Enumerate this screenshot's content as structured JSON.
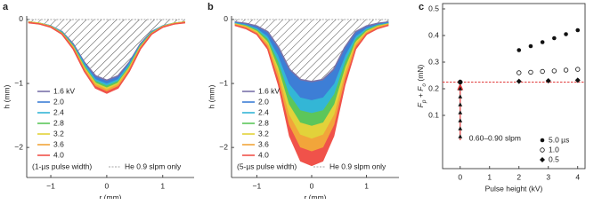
{
  "chart_data": [
    {
      "type": "area",
      "label": "a",
      "x_label": "r (mm)",
      "y_label": "h (mm)",
      "x": [
        -1.4,
        -1.2,
        -1.0,
        -0.8,
        -0.6,
        -0.4,
        -0.2,
        0,
        0.2,
        0.4,
        0.6,
        0.8,
        1.0,
        1.2,
        1.4
      ],
      "xlim": [
        -1.43,
        1.56
      ],
      "ylim": [
        -2.47,
        0.055
      ],
      "xticks": [
        {
          "value": -1,
          "label": "−1"
        },
        0,
        1
      ],
      "yticks": [
        0,
        {
          "value": -1,
          "label": "−1"
        },
        {
          "value": -2,
          "label": "−2"
        }
      ],
      "series": [
        {
          "name": "1.6 kV",
          "color": "#7a72a8",
          "values": [
            -0.04,
            -0.06,
            -0.1,
            -0.19,
            -0.38,
            -0.67,
            -0.88,
            -0.95,
            -0.88,
            -0.67,
            -0.38,
            -0.19,
            -0.1,
            -0.06,
            -0.04
          ]
        },
        {
          "name": "2.0",
          "color": "#3d7ed6",
          "values": [
            -0.04,
            -0.06,
            -0.1,
            -0.2,
            -0.4,
            -0.69,
            -0.92,
            -0.99,
            -0.92,
            -0.69,
            -0.4,
            -0.2,
            -0.1,
            -0.06,
            -0.04
          ]
        },
        {
          "name": "2.4",
          "color": "#33b6d6",
          "values": [
            -0.04,
            -0.06,
            -0.1,
            -0.2,
            -0.41,
            -0.71,
            -0.95,
            -1.02,
            -0.95,
            -0.71,
            -0.41,
            -0.2,
            -0.1,
            -0.06,
            -0.04
          ]
        },
        {
          "name": "2.8",
          "color": "#5cc65a",
          "values": [
            -0.04,
            -0.06,
            -0.11,
            -0.21,
            -0.42,
            -0.74,
            -0.98,
            -1.05,
            -0.98,
            -0.74,
            -0.42,
            -0.21,
            -0.11,
            -0.06,
            -0.04
          ]
        },
        {
          "name": "3.2",
          "color": "#e2d23a",
          "values": [
            -0.04,
            -0.06,
            -0.11,
            -0.22,
            -0.43,
            -0.76,
            -1.0,
            -1.08,
            -1.0,
            -0.76,
            -0.43,
            -0.22,
            -0.11,
            -0.06,
            -0.04
          ]
        },
        {
          "name": "3.6",
          "color": "#f2a53a",
          "values": [
            -0.04,
            -0.07,
            -0.11,
            -0.22,
            -0.44,
            -0.78,
            -1.03,
            -1.11,
            -1.03,
            -0.78,
            -0.44,
            -0.22,
            -0.11,
            -0.07,
            -0.04
          ]
        },
        {
          "name": "4.0",
          "color": "#f0524a",
          "values": [
            -0.05,
            -0.07,
            -0.12,
            -0.23,
            -0.46,
            -0.81,
            -1.07,
            -1.15,
            -1.07,
            -0.81,
            -0.46,
            -0.23,
            -0.12,
            -0.07,
            -0.05
          ]
        }
      ],
      "reference": {
        "name": "He 0.9 slpm only",
        "color": "#888888",
        "values": [
          0,
          0,
          0,
          0,
          0,
          0,
          0,
          0,
          0,
          0,
          0,
          0,
          0,
          0,
          0
        ]
      },
      "note": "(1-µs pulse width)"
    },
    {
      "type": "area",
      "label": "b",
      "x_label": "r (mm)",
      "y_label": "h (mm)",
      "x": [
        -1.4,
        -1.2,
        -1.0,
        -0.8,
        -0.6,
        -0.4,
        -0.2,
        0,
        0.2,
        0.4,
        0.6,
        0.8,
        1.0,
        1.2,
        1.4
      ],
      "xlim": [
        -1.46,
        1.59
      ],
      "ylim": [
        -2.47,
        0.055
      ],
      "xticks": [
        {
          "value": -1,
          "label": "−1"
        },
        0,
        1
      ],
      "yticks": [
        0,
        {
          "value": -1,
          "label": "−1"
        },
        {
          "value": -2,
          "label": "−2"
        }
      ],
      "series": [
        {
          "name": "1.6 kV",
          "color": "#7a72a8",
          "values": [
            -0.04,
            -0.06,
            -0.1,
            -0.19,
            -0.44,
            -0.78,
            -0.94,
            -0.97,
            -0.94,
            -0.78,
            -0.44,
            -0.19,
            -0.1,
            -0.06,
            -0.04
          ]
        },
        {
          "name": "2.0",
          "color": "#3d7ed6",
          "values": [
            -0.05,
            -0.08,
            -0.13,
            -0.25,
            -0.56,
            -1.0,
            -1.21,
            -1.25,
            -1.21,
            -1.0,
            -0.56,
            -0.25,
            -0.13,
            -0.08,
            -0.05
          ]
        },
        {
          "name": "2.4",
          "color": "#33b6d6",
          "values": [
            -0.06,
            -0.09,
            -0.15,
            -0.29,
            -0.65,
            -1.16,
            -1.41,
            -1.45,
            -1.41,
            -1.16,
            -0.65,
            -0.29,
            -0.15,
            -0.09,
            -0.06
          ]
        },
        {
          "name": "2.8",
          "color": "#5cc65a",
          "values": [
            -0.07,
            -0.1,
            -0.17,
            -0.33,
            -0.74,
            -1.32,
            -1.6,
            -1.65,
            -1.6,
            -1.32,
            -0.74,
            -0.33,
            -0.17,
            -0.1,
            -0.07
          ]
        },
        {
          "name": "3.2",
          "color": "#e2d23a",
          "values": [
            -0.07,
            -0.11,
            -0.19,
            -0.37,
            -0.83,
            -1.48,
            -1.79,
            -1.85,
            -1.79,
            -1.48,
            -0.83,
            -0.37,
            -0.19,
            -0.11,
            -0.07
          ]
        },
        {
          "name": "3.6",
          "color": "#f2a53a",
          "values": [
            -0.08,
            -0.12,
            -0.21,
            -0.41,
            -0.92,
            -1.64,
            -1.99,
            -2.05,
            -1.99,
            -1.64,
            -0.92,
            -0.41,
            -0.21,
            -0.12,
            -0.08
          ]
        },
        {
          "name": "4.0",
          "color": "#f0524a",
          "values": [
            -0.09,
            -0.14,
            -0.23,
            -0.46,
            -1.03,
            -1.82,
            -2.21,
            -2.28,
            -2.21,
            -1.82,
            -1.03,
            -0.46,
            -0.23,
            -0.14,
            -0.09
          ]
        }
      ],
      "reference": {
        "name": "He 0.9 slpm only",
        "color": "#888888",
        "values": [
          0,
          0,
          0,
          0,
          0,
          0,
          0,
          0,
          0,
          0,
          0,
          0,
          0,
          0,
          0
        ]
      },
      "note": "(5-µs pulse width)"
    },
    {
      "type": "scatter",
      "label": "c",
      "x_label": "Pulse height (kV)",
      "y_label": {
        "f1": "F",
        "s1": "p",
        "mid": " + F",
        "s2": "o",
        "unit": " (mN)"
      },
      "xlim": [
        -0.6,
        4.25
      ],
      "ylim": [
        -0.1,
        0.52
      ],
      "xticks": [
        0,
        1,
        2,
        3,
        4
      ],
      "yticks": [
        0.1,
        0.2,
        0.3,
        0.4,
        0.5
      ],
      "series": [
        {
          "name": "5.0 µs",
          "color": "#111111",
          "marker": "circle",
          "x": [
            0,
            2,
            2.4,
            2.8,
            3.2,
            3.6,
            4
          ],
          "values": [
            0.225,
            0.345,
            0.36,
            0.375,
            0.39,
            0.405,
            0.42
          ]
        },
        {
          "name": "1.0",
          "color": "#111111",
          "marker": "open-circle",
          "x": [
            0,
            2,
            2.4,
            2.8,
            3.2,
            3.6,
            4
          ],
          "values": [
            0.225,
            0.26,
            0.262,
            0.265,
            0.267,
            0.27,
            0.273
          ]
        },
        {
          "name": "0.5",
          "color": "#111111",
          "marker": "diamond",
          "x": [
            0,
            2,
            3,
            4
          ],
          "values": [
            0.225,
            0.228,
            0.23,
            0.232
          ]
        }
      ],
      "flow_points": {
        "annotation": "0.60–0.90 slpm",
        "color": "#e03a3a",
        "marker": "triangle",
        "x": [
          0,
          0,
          0,
          0,
          0,
          0,
          0
        ],
        "values": [
          0.02,
          0.05,
          0.08,
          0.11,
          0.14,
          0.17,
          0.2
        ]
      },
      "ref_line": {
        "value": 0.225,
        "color": "#e03a3a"
      }
    }
  ]
}
